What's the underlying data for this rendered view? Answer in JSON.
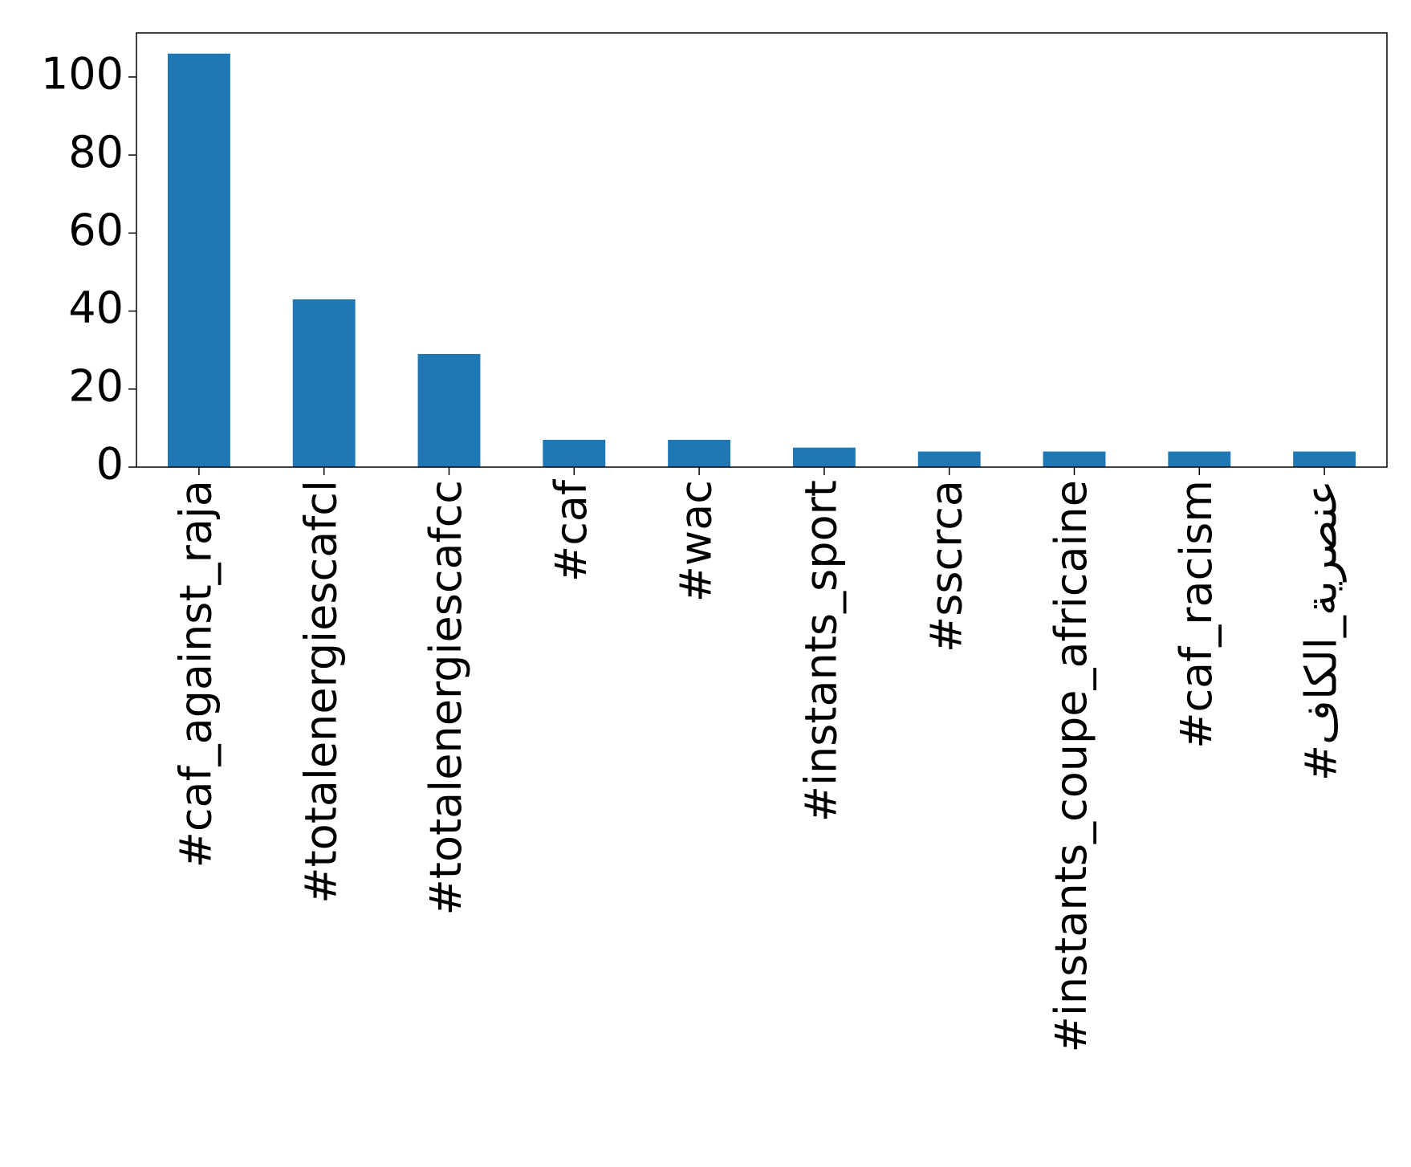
{
  "chart_data": {
    "type": "bar",
    "categories": [
      "#caf_against_raja",
      "#totalenergiescafcl",
      "#totalenergiescafcc",
      "#caf",
      "#wac",
      "#instants_sport",
      "#sscrca",
      "#instants_coupe_africaine",
      "#caf_racism",
      "#عنصرية_الكاف"
    ],
    "values": [
      106,
      43,
      29,
      7,
      7,
      5,
      4,
      4,
      4,
      4
    ],
    "color": "#1f77b4",
    "ylim": [
      0,
      111.3
    ],
    "yticks": [
      0,
      20,
      40,
      60,
      80,
      100
    ],
    "grid": false
  }
}
